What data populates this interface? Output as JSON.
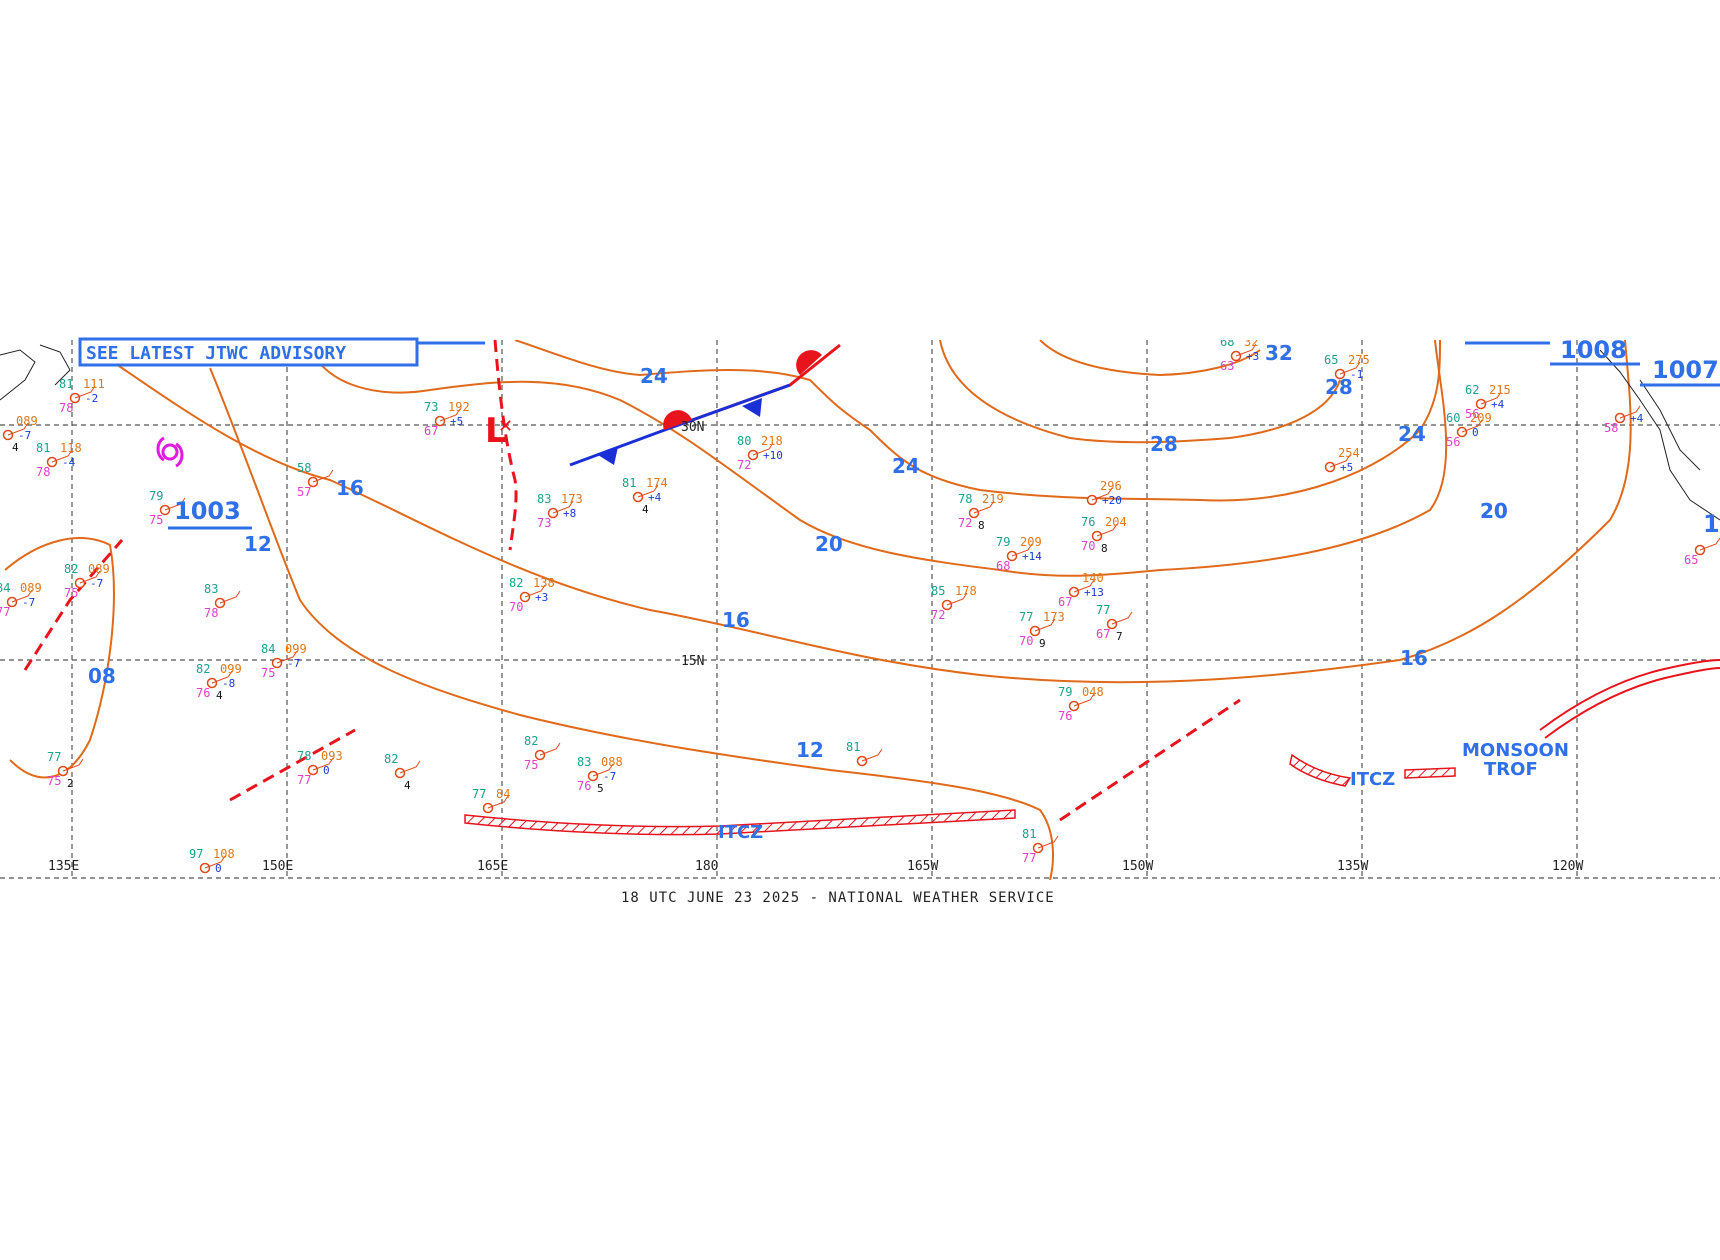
{
  "header": {
    "advisory": "SEE LATEST JTWC ADVISORY"
  },
  "caption": "18 UTC JUNE 23 2025 - NATIONAL WEATHER SERVICE",
  "longitude_labels": [
    "135E",
    "150E",
    "165E",
    "180",
    "165W",
    "150W",
    "135W",
    "120W"
  ],
  "latitude_labels": [
    "30N",
    "15N"
  ],
  "isobar_labels": [
    "24",
    "16",
    "12",
    "08",
    "20",
    "16",
    "12",
    "24",
    "20",
    "28",
    "32",
    "28",
    "24",
    "20",
    "16"
  ],
  "pressure_centers": [
    "1003",
    "1008",
    "1007",
    "1"
  ],
  "low_symbol": "L",
  "features": {
    "itcz_west": "ITCZ",
    "itcz_east": "ITCZ",
    "monsoon_line1": "MONSOON",
    "monsoon_line2": "TROF"
  },
  "stations": [
    {
      "t": "79",
      "p": "",
      "d": "75",
      "c": "",
      "v": ""
    },
    {
      "t": "81",
      "p": "111",
      "d": "78",
      "c": "-2",
      "v": ""
    },
    {
      "t": "81",
      "p": "118",
      "d": "78",
      "c": "-4",
      "v": ""
    },
    {
      "t": "",
      "p": "089",
      "d": "",
      "c": "-7",
      "v": "4"
    },
    {
      "t": "58",
      "p": "",
      "d": "57",
      "c": "",
      "v": ""
    },
    {
      "t": "82",
      "p": "089",
      "d": "75",
      "c": "-7",
      "v": ""
    },
    {
      "t": "84",
      "p": "089",
      "d": "77",
      "c": "-7",
      "v": ""
    },
    {
      "t": "83",
      "p": "",
      "d": "78",
      "c": "",
      "v": ""
    },
    {
      "t": "84",
      "p": "099",
      "d": "75",
      "c": "-7",
      "v": ""
    },
    {
      "t": "82",
      "p": "099",
      "d": "76",
      "c": "-8",
      "v": "4"
    },
    {
      "t": "77",
      "p": "",
      "d": "75",
      "c": "",
      "v": "2"
    },
    {
      "t": "78",
      "p": "093",
      "d": "77",
      "c": "0",
      "v": ""
    },
    {
      "t": "82",
      "p": "",
      "d": "",
      "c": "",
      "v": "4"
    },
    {
      "t": "97",
      "p": "108",
      "d": "",
      "c": "0",
      "v": ""
    },
    {
      "t": "73",
      "p": "192",
      "d": "67",
      "c": "+5",
      "v": ""
    },
    {
      "t": "83",
      "p": "173",
      "d": "73",
      "c": "+8",
      "v": ""
    },
    {
      "t": "81",
      "p": "174",
      "d": "",
      "c": "+4",
      "v": "4"
    },
    {
      "t": "82",
      "p": "138",
      "d": "70",
      "c": "+3",
      "v": ""
    },
    {
      "t": "80",
      "p": "218",
      "d": "72",
      "c": "+10",
      "v": ""
    },
    {
      "t": "82",
      "p": "",
      "d": "75",
      "c": "",
      "v": ""
    },
    {
      "t": "83",
      "p": "088",
      "d": "76",
      "c": "-7",
      "v": "5"
    },
    {
      "t": "77",
      "p": "84",
      "d": "",
      "c": "",
      "v": ""
    },
    {
      "t": "81",
      "p": "",
      "d": "",
      "c": "",
      "v": ""
    },
    {
      "t": "78",
      "p": "219",
      "d": "72",
      "c": "",
      "v": "8"
    },
    {
      "t": "79",
      "p": "209",
      "d": "68",
      "c": "+14",
      "v": ""
    },
    {
      "t": "85",
      "p": "178",
      "d": "72",
      "c": "",
      "v": ""
    },
    {
      "t": "76",
      "p": "204",
      "d": "70",
      "c": "",
      "v": "8"
    },
    {
      "t": "",
      "p": "296",
      "d": "",
      "c": "+20",
      "v": ""
    },
    {
      "t": "",
      "p": "140",
      "d": "67",
      "c": "+13",
      "v": ""
    },
    {
      "t": "77",
      "p": "173",
      "d": "70",
      "c": "",
      "v": "9"
    },
    {
      "t": "77",
      "p": "",
      "d": "67",
      "c": "",
      "v": "7"
    },
    {
      "t": "79",
      "p": "048",
      "d": "76",
      "c": "",
      "v": ""
    },
    {
      "t": "81",
      "p": "",
      "d": "77",
      "c": "",
      "v": ""
    },
    {
      "t": "68",
      "p": "32",
      "d": "63",
      "c": "+3",
      "v": ""
    },
    {
      "t": "65",
      "p": "275",
      "d": "",
      "c": "-1",
      "v": ""
    },
    {
      "t": "",
      "p": "254",
      "d": "",
      "c": "+5",
      "v": ""
    },
    {
      "t": "62",
      "p": "215",
      "d": "56",
      "c": "+4",
      "v": ""
    },
    {
      "t": "60",
      "p": "209",
      "d": "56",
      "c": "0",
      "v": ""
    },
    {
      "t": "",
      "p": "",
      "d": "58",
      "c": "+4",
      "v": ""
    },
    {
      "t": "",
      "p": "",
      "d": "65",
      "c": "",
      "v": ""
    }
  ],
  "colors": {
    "isobar": "#e06a1a",
    "label": "#2f6fe8",
    "front_warm": "#e8141c",
    "front_cold": "#1a2fd6",
    "itcz": "#e8141c",
    "cyclone": "#e01ce0"
  }
}
